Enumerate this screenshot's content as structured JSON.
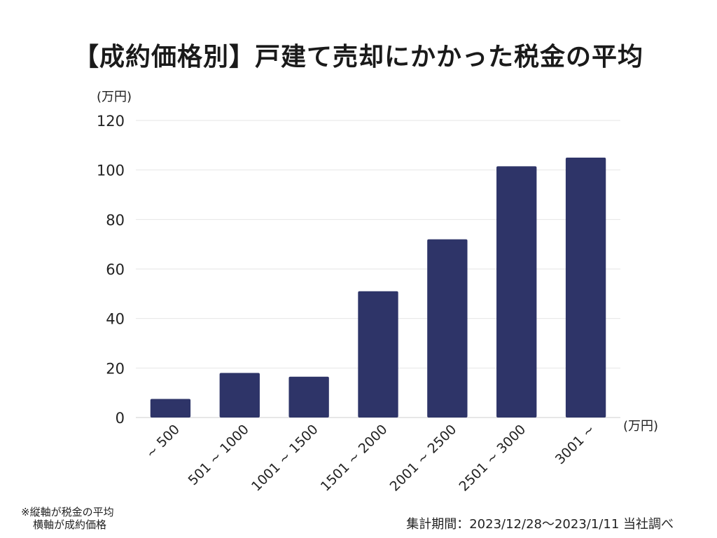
{
  "title": "【成約価格別】戸建て売却にかかった税金の平均",
  "notes": [
    "※縦軸が税金の平均",
    "横軸が成約価格"
  ],
  "source": "集計期間：2023/12/28〜2023/1/11 当社調べ",
  "colors": {
    "bar": "#2e3468",
    "grid": "#e6e6e6",
    "axis": "#cfcfcf"
  },
  "chart_data": {
    "type": "bar",
    "title": "【成約価格別】戸建て売却にかかった税金の平均",
    "y_unit": "(万円)",
    "x_unit": "(万円)",
    "categories": [
      "~ 500",
      "501 ~ 1000",
      "1001 ~ 1500",
      "1501 ~ 2000",
      "2001 ~ 2500",
      "2501 ~ 3000",
      "3001 ~"
    ],
    "values": [
      7.5,
      18,
      16.5,
      51,
      72,
      101.5,
      105
    ],
    "ylim": [
      0,
      120
    ],
    "yticks": [
      0,
      20,
      40,
      60,
      80,
      100,
      120
    ],
    "grid": true
  }
}
